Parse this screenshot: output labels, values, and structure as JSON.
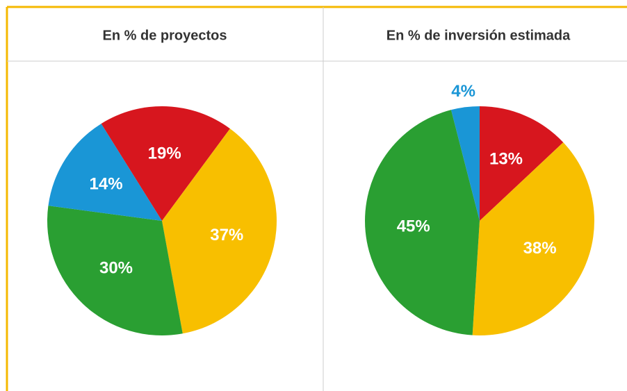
{
  "chart_data": [
    {
      "type": "pie",
      "title": "En % de proyectos",
      "values": [
        19,
        37,
        30,
        14
      ],
      "value_labels": [
        "19%",
        "37%",
        "30%",
        "14%"
      ],
      "colors": [
        "#d7161e",
        "#f8bf00",
        "#2a9f32",
        "#1a96d6"
      ],
      "start_angle": -32
    },
    {
      "type": "pie",
      "title": "En % de inversión estimada",
      "values": [
        13,
        38,
        45,
        4
      ],
      "value_labels": [
        "13%",
        "38%",
        "45%",
        "4%"
      ],
      "colors": [
        "#d7161e",
        "#f8bf00",
        "#2a9f32",
        "#1a96d6"
      ],
      "start_angle": 0
    }
  ]
}
